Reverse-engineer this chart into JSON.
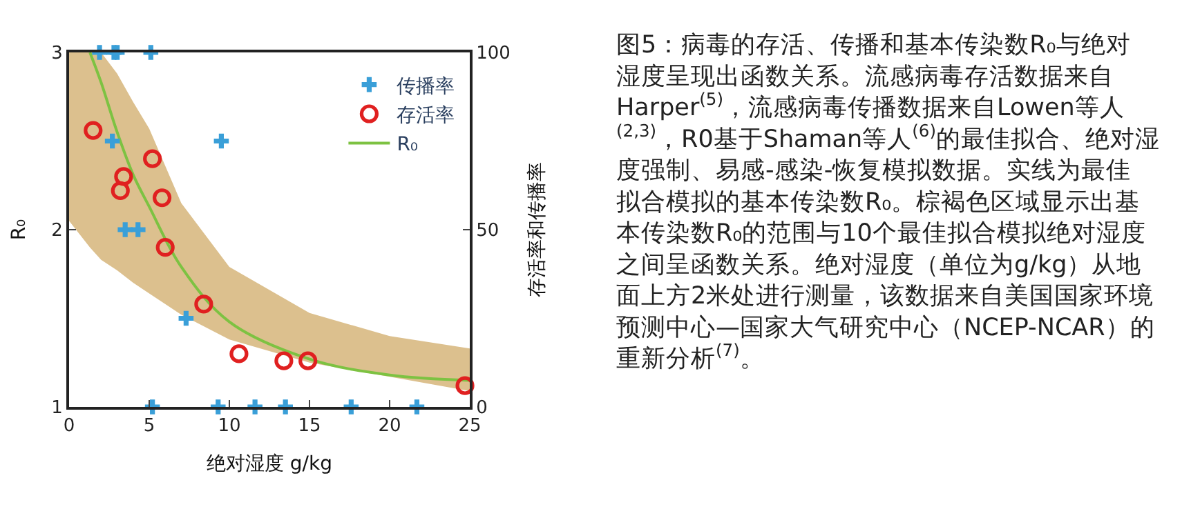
{
  "chart_data": {
    "type": "scatter",
    "xlabel": "绝对湿度 g/kg",
    "ylabel": "R₀",
    "y2label": "存活率和传播率",
    "xlim": [
      0,
      25
    ],
    "xticks": [
      0,
      5,
      10,
      15,
      20,
      25
    ],
    "ylim": [
      1,
      3
    ],
    "yticks": [
      1,
      2,
      3
    ],
    "y2lim": [
      0,
      100
    ],
    "y2ticks": [
      0,
      50,
      100
    ],
    "legend": "top right",
    "series": [
      {
        "name": "传播率",
        "marker": "cross",
        "axis": "y2",
        "color": "#3a9fd8",
        "x": [
          1.9,
          2.8,
          3.0,
          5.1,
          2.7,
          9.5,
          3.5,
          4.3,
          7.3,
          5.2,
          9.3,
          11.6,
          13.5,
          17.6,
          21.7
        ],
        "values": [
          100,
          100,
          100,
          100,
          75,
          75,
          50,
          50,
          25,
          0,
          0,
          0,
          0,
          0,
          0
        ]
      },
      {
        "name": "存活率",
        "marker": "circle",
        "axis": "y2",
        "color": "#e02020",
        "x": [
          1.5,
          5.2,
          3.4,
          3.2,
          5.8,
          6.0,
          8.4,
          10.6,
          13.4,
          14.9,
          24.7
        ],
        "values": [
          78,
          70,
          65,
          61,
          59,
          45,
          29,
          15,
          13,
          13,
          6
        ]
      },
      {
        "name": "R₀",
        "type": "line",
        "marker": "none",
        "axis": "y",
        "color": "#7dc242",
        "x": [
          0,
          1.3,
          2,
          3,
          4,
          5,
          7,
          10,
          15,
          20,
          25
        ],
        "values": [
          null,
          3,
          2.83,
          2.55,
          2.31,
          2.13,
          1.79,
          1.48,
          1.27,
          1.18,
          1.15
        ],
        "lower": [
          2.05,
          1.9,
          1.83,
          1.77,
          1.7,
          1.64,
          1.52,
          1.38,
          1.25,
          1.17,
          1.09
        ],
        "upper": [
          3,
          3,
          3,
          2.88,
          2.72,
          2.57,
          2.15,
          1.79,
          1.53,
          1.4,
          1.33
        ]
      }
    ],
    "annotations": [
      "图5：病毒的存活、传播和基本传染数R₀与绝对湿度呈现出函数关系。流感病毒存活数据来自Harper$^{(5)}$，流感病毒传播数据来自Lowen等人$^{(2,3)}$，R0基于Shaman等人$^{(6)}$的最佳拟合、绝对湿度强制、易感-感染-恢复模拟数据。实线为最佳拟合模拟的基本传染数R₀。棕褐色区域显示出基本传染数R₀的范围与10个最佳拟合模拟绝对湿度之间呈函数关系。绝对湿度（单位为g/kg）从地面上方2米处进行测量，该数据来自美国国家环境预测中心—国家大气研究中心（NCEP-NCAR）的重新分析$^{(7)}$。"
    ]
  }
}
